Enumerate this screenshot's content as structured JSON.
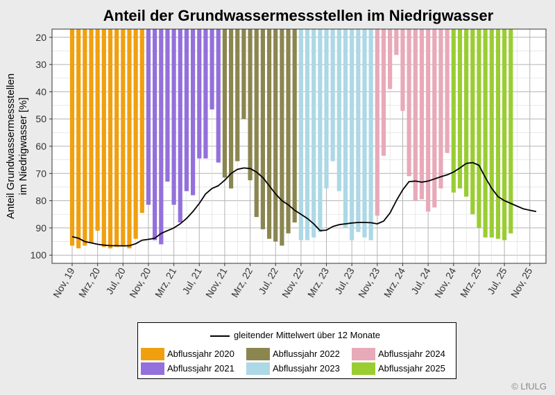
{
  "chart_data": {
    "type": "bar",
    "title": "Anteil der Grundwassermessstellen im Niedrigwasser",
    "ylabel": "Anteil Grundwassermessstellen\nim Niedrigwasser [%]",
    "xlabel": "",
    "y_reversed": true,
    "ylim": [
      100,
      17
    ],
    "y_ticks": [
      "20",
      "30",
      "40",
      "50",
      "60",
      "70",
      "80",
      "90",
      "100"
    ],
    "x_ticks": [
      "Nov, 19",
      "Mrz, 20",
      "Jul, 20",
      "Nov, 20",
      "Mrz, 21",
      "Jul, 21",
      "Nov, 21",
      "Mrz, 22",
      "Jul, 22",
      "Nov, 22",
      "Mrz, 23",
      "Jul, 23",
      "Nov, 23",
      "Mrz, 24",
      "Jul, 24",
      "Nov, 24",
      "Mrz, 25",
      "Jul, 25",
      "Nov, 25"
    ],
    "grid": true,
    "legend_position": "bottom",
    "series": [
      {
        "name": "Abflussjahr 2020",
        "color": "#f0a00f",
        "start": "2019-11",
        "values": [
          96.5,
          97.5,
          96.5,
          95.5,
          91,
          97,
          97.5,
          97,
          96.5,
          97.5,
          94,
          84.5
        ]
      },
      {
        "name": "Abflussjahr 2021",
        "color": "#9370db",
        "start": "2020-11",
        "values": [
          81.5,
          94.5,
          96,
          73,
          81.5,
          88,
          76.5,
          78,
          64.5,
          64.5,
          46.5,
          66
        ]
      },
      {
        "name": "Abflussjahr 2022",
        "color": "#8b8650",
        "start": "2021-11",
        "values": [
          71.5,
          75.5,
          65.5,
          50,
          72.5,
          86,
          90.5,
          94,
          95,
          96.5,
          92,
          88
        ]
      },
      {
        "name": "Abflussjahr 2023",
        "color": "#add8e6",
        "start": "2022-11",
        "values": [
          94.5,
          94.5,
          93.5,
          91.5,
          75.5,
          65.5,
          76.5,
          90,
          94.5,
          91.5,
          93.5,
          94.5
        ]
      },
      {
        "name": "Abflussjahr 2024",
        "color": "#e8a9b8",
        "start": "2023-11",
        "values": [
          85.5,
          63.5,
          39,
          26.5,
          47,
          71,
          80,
          79.5,
          84,
          82.5,
          75.5,
          62.5
        ]
      },
      {
        "name": "Abflussjahr 2025",
        "color": "#9acd32",
        "start": "2024-11",
        "values": [
          77,
          75.5,
          78.5,
          85,
          90,
          93.5,
          93.5,
          94,
          94.5,
          92
        ]
      }
    ],
    "line": {
      "name": "gleitender Mittelwert über 12 Monate",
      "color": "#000000",
      "points": [
        [
          "2019-11",
          93.2
        ],
        [
          "2019-12",
          93.8
        ],
        [
          "2020-01",
          95
        ],
        [
          "2020-02",
          95.5
        ],
        [
          "2020-03",
          96
        ],
        [
          "2020-04",
          96.3
        ],
        [
          "2020-05",
          96.5
        ],
        [
          "2020-06",
          96.5
        ],
        [
          "2020-07",
          96.6
        ],
        [
          "2020-08",
          96.5
        ],
        [
          "2020-09",
          95.8
        ],
        [
          "2020-10",
          94.5
        ],
        [
          "2020-11",
          94.2
        ],
        [
          "2020-12",
          93.8
        ],
        [
          "2021-01",
          92
        ],
        [
          "2021-02",
          91
        ],
        [
          "2021-03",
          90
        ],
        [
          "2021-04",
          88.5
        ],
        [
          "2021-05",
          86.5
        ],
        [
          "2021-06",
          84
        ],
        [
          "2021-07",
          81
        ],
        [
          "2021-08",
          77.5
        ],
        [
          "2021-09",
          75.5
        ],
        [
          "2021-10",
          74.5
        ],
        [
          "2021-11",
          72.5
        ],
        [
          "2021-12",
          70
        ],
        [
          "2022-01",
          68.5
        ],
        [
          "2022-02",
          68
        ],
        [
          "2022-03",
          68.2
        ],
        [
          "2022-04",
          69.5
        ],
        [
          "2022-05",
          71.5
        ],
        [
          "2022-06",
          74.5
        ],
        [
          "2022-07",
          77.5
        ],
        [
          "2022-08",
          80
        ],
        [
          "2022-09",
          81.5
        ],
        [
          "2022-10",
          83.5
        ],
        [
          "2022-11",
          85
        ],
        [
          "2022-12",
          86.5
        ],
        [
          "2023-01",
          88.5
        ],
        [
          "2023-02",
          91
        ],
        [
          "2023-03",
          90.8
        ],
        [
          "2023-04",
          89.5
        ],
        [
          "2023-05",
          88.8
        ],
        [
          "2023-06",
          88.5
        ],
        [
          "2023-07",
          88.2
        ],
        [
          "2023-08",
          88
        ],
        [
          "2023-09",
          88
        ],
        [
          "2023-10",
          88.1
        ],
        [
          "2023-11",
          88.5
        ],
        [
          "2023-12",
          87.5
        ],
        [
          "2024-01",
          84.5
        ],
        [
          "2024-02",
          80
        ],
        [
          "2024-03",
          76
        ],
        [
          "2024-04",
          73
        ],
        [
          "2024-05",
          72.8
        ],
        [
          "2024-06",
          73.2
        ],
        [
          "2024-07",
          72.8
        ],
        [
          "2024-08",
          72
        ],
        [
          "2024-09",
          71.2
        ],
        [
          "2024-10",
          70.5
        ],
        [
          "2024-11",
          69.5
        ],
        [
          "2024-12",
          68
        ],
        [
          "2025-01",
          66.3
        ],
        [
          "2025-02",
          66
        ],
        [
          "2025-03",
          67
        ],
        [
          "2025-04",
          71.5
        ],
        [
          "2025-05",
          75.5
        ],
        [
          "2025-06",
          78.5
        ],
        [
          "2025-07",
          80
        ],
        [
          "2025-08",
          81
        ],
        [
          "2025-09",
          82
        ],
        [
          "2025-10",
          83
        ],
        [
          "2025-11",
          83.5
        ],
        [
          "2025-12",
          84
        ]
      ]
    }
  },
  "legend": {
    "line_label": "gleitender Mittelwert über 12 Monate",
    "items": [
      "Abflussjahr 2020",
      "Abflussjahr 2022",
      "Abflussjahr 2024",
      "Abflussjahr 2021",
      "Abflussjahr 2023",
      "Abflussjahr 2025"
    ]
  },
  "copyright": "© LfULG"
}
